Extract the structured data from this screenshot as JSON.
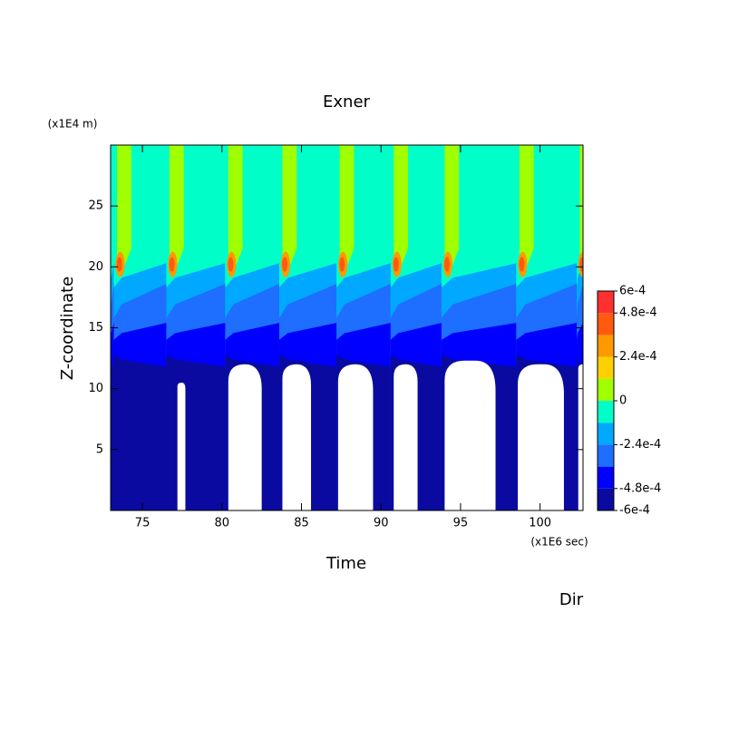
{
  "chart_data": {
    "type": "contour",
    "title": "Exner",
    "xlabel": "Time",
    "ylabel": "Z-coordinate",
    "xunit": "(x1E6 sec)",
    "yunit": "(x1E4 m)",
    "footer": "Dir",
    "xlim": [
      73,
      102.7
    ],
    "ylim": [
      0,
      30
    ],
    "xticks": [
      75,
      80,
      85,
      90,
      95,
      100
    ],
    "yticks": [
      5,
      10,
      15,
      20,
      25
    ],
    "levels": [
      -0.0006,
      -0.00048,
      -0.00036,
      -0.00024,
      -0.00012,
      0,
      0.00012,
      0.00024,
      0.00036,
      0.00048,
      0.0006
    ],
    "colors": [
      "#0a0aa0",
      "#0000ff",
      "#1e6eff",
      "#00a8ff",
      "#00ffc8",
      "#a0ff00",
      "#ffd000",
      "#ff9900",
      "#ff5a10",
      "#ff3030"
    ],
    "cbar_ticks": [
      {
        "value": 0.0006,
        "label": "6e-4"
      },
      {
        "value": 0.00048,
        "label": "4.8e-4"
      },
      {
        "value": 0.00024,
        "label": "2.4e-4"
      },
      0,
      {
        "value": -0.00024,
        "label": "-2.4e-4"
      },
      {
        "value": -0.00048,
        "label": "-4.8e-4"
      },
      {
        "value": -0.0006,
        "label": "-6e-4"
      }
    ]
  }
}
